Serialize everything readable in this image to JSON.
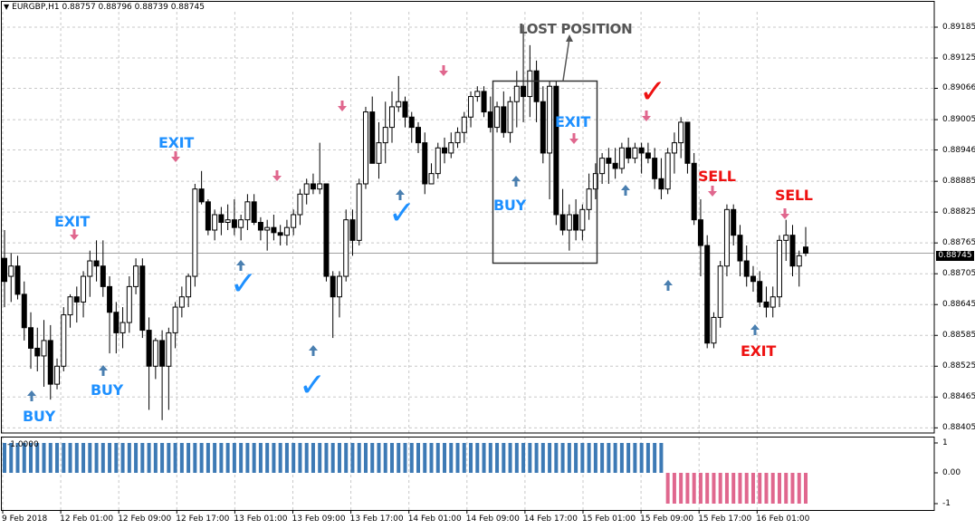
{
  "window": {
    "title": "EURGBP,H1  0.88757 0.88796 0.88739 0.88745",
    "symbol": "EURGBP",
    "timeframe": "H1"
  },
  "price_axis": {
    "labels": [
      "0.89185",
      "0.89125",
      "0.89066",
      "0.89005",
      "0.88946",
      "0.88885",
      "0.88825",
      "0.88765",
      "0.88705",
      "0.88645",
      "0.88585",
      "0.88525",
      "0.88465",
      "0.88405"
    ],
    "current_price": "0.88745",
    "range": [
      0.88395,
      0.89215
    ]
  },
  "indicator": {
    "caption": "-1.0000",
    "axis_labels": [
      "1",
      "0.00",
      "-1"
    ],
    "colors": {
      "positive": "#3d7ab5",
      "negative": "#e0678e"
    }
  },
  "time_axis": {
    "labels": [
      "9 Feb 2018",
      "12 Feb 01:00",
      "12 Feb 09:00",
      "12 Feb 17:00",
      "13 Feb 01:00",
      "13 Feb 09:00",
      "13 Feb 17:00",
      "14 Feb 01:00",
      "14 Feb 09:00",
      "14 Feb 17:00",
      "15 Feb 01:00",
      "15 Feb 09:00",
      "15 Feb 17:00",
      "16 Feb 01:00"
    ]
  },
  "annotations": {
    "buy_1": "BUY",
    "exit_1": "EXIT",
    "buy_2": "BUY",
    "exit_2": "EXIT",
    "buy_3": "BUY",
    "exit_3": "EXIT",
    "lost_position": "LOST POSITION",
    "sell_1": "SELL",
    "sell_2": "SELL",
    "exit_4": "EXIT"
  },
  "checkmark_glyph": "✓",
  "colors": {
    "bull": "#ffffff",
    "bear": "#000000",
    "grid": "#c8c8c8",
    "buy_arrow": "#4a7fb0",
    "sell_arrow": "#e0678e",
    "annotation_blue": "#1e90ff",
    "annotation_red": "#ee1111"
  },
  "chart_data": {
    "type": "candlestick",
    "symbol": "EURGBP",
    "timeframe": "H1",
    "ylim": [
      0.88395,
      0.89215
    ],
    "candles": [
      [
        0.88735,
        0.8879,
        0.8864,
        0.8869
      ],
      [
        0.887,
        0.88745,
        0.8865,
        0.8872
      ],
      [
        0.8872,
        0.8874,
        0.88655,
        0.88665
      ],
      [
        0.88665,
        0.8869,
        0.88575,
        0.886
      ],
      [
        0.886,
        0.8863,
        0.8852,
        0.8856
      ],
      [
        0.8856,
        0.886,
        0.88515,
        0.88545
      ],
      [
        0.88545,
        0.88615,
        0.88485,
        0.88575
      ],
      [
        0.88575,
        0.88605,
        0.8846,
        0.8849
      ],
      [
        0.8849,
        0.8854,
        0.8848,
        0.88525
      ],
      [
        0.88525,
        0.8864,
        0.88515,
        0.88625
      ],
      [
        0.88625,
        0.88665,
        0.886,
        0.8866
      ],
      [
        0.8866,
        0.8868,
        0.8861,
        0.8865
      ],
      [
        0.8865,
        0.8871,
        0.8862,
        0.887
      ],
      [
        0.887,
        0.8875,
        0.8866,
        0.8873
      ],
      [
        0.8873,
        0.8877,
        0.8869,
        0.8872
      ],
      [
        0.8872,
        0.8877,
        0.8866,
        0.8868
      ],
      [
        0.8868,
        0.887,
        0.8855,
        0.8863
      ],
      [
        0.8863,
        0.8865,
        0.8855,
        0.8859
      ],
      [
        0.8859,
        0.8864,
        0.8856,
        0.8861
      ],
      [
        0.8861,
        0.887,
        0.8859,
        0.8868
      ],
      [
        0.8868,
        0.88735,
        0.88665,
        0.8872
      ],
      [
        0.8872,
        0.88735,
        0.8858,
        0.88595
      ],
      [
        0.88595,
        0.8862,
        0.8844,
        0.88525
      ],
      [
        0.88525,
        0.8858,
        0.885,
        0.88575
      ],
      [
        0.88575,
        0.88595,
        0.8842,
        0.88525
      ],
      [
        0.88525,
        0.886,
        0.8844,
        0.8859
      ],
      [
        0.8859,
        0.8865,
        0.8856,
        0.8864
      ],
      [
        0.8864,
        0.8868,
        0.8862,
        0.8866
      ],
      [
        0.8866,
        0.88705,
        0.8864,
        0.887
      ],
      [
        0.887,
        0.8888,
        0.8868,
        0.8887
      ],
      [
        0.8887,
        0.88905,
        0.8884,
        0.88845
      ],
      [
        0.88845,
        0.8885,
        0.8878,
        0.8879
      ],
      [
        0.8879,
        0.8883,
        0.8877,
        0.8882
      ],
      [
        0.8882,
        0.88835,
        0.8878,
        0.88805
      ],
      [
        0.88805,
        0.8884,
        0.8879,
        0.8881
      ],
      [
        0.8881,
        0.8885,
        0.8878,
        0.88795
      ],
      [
        0.88795,
        0.8882,
        0.8877,
        0.8881
      ],
      [
        0.8881,
        0.8886,
        0.8879,
        0.88845
      ],
      [
        0.88845,
        0.8886,
        0.888,
        0.88805
      ],
      [
        0.88805,
        0.88815,
        0.8877,
        0.8879
      ],
      [
        0.8879,
        0.8881,
        0.8875,
        0.88795
      ],
      [
        0.88795,
        0.8882,
        0.8877,
        0.88785
      ],
      [
        0.88785,
        0.888,
        0.8876,
        0.8878
      ],
      [
        0.8878,
        0.8881,
        0.8876,
        0.88795
      ],
      [
        0.88795,
        0.8883,
        0.8878,
        0.8882
      ],
      [
        0.8882,
        0.8887,
        0.888,
        0.8886
      ],
      [
        0.8886,
        0.8889,
        0.8884,
        0.8888
      ],
      [
        0.8888,
        0.889,
        0.8886,
        0.8887
      ],
      [
        0.8887,
        0.8896,
        0.8886,
        0.8888
      ],
      [
        0.8888,
        0.8888,
        0.8869,
        0.887
      ],
      [
        0.887,
        0.8871,
        0.8858,
        0.8866
      ],
      [
        0.8866,
        0.8871,
        0.8862,
        0.887
      ],
      [
        0.887,
        0.8883,
        0.8869,
        0.8881
      ],
      [
        0.8881,
        0.8883,
        0.8874,
        0.8877
      ],
      [
        0.8877,
        0.8889,
        0.8876,
        0.8888
      ],
      [
        0.8888,
        0.8903,
        0.8887,
        0.8902
      ],
      [
        0.8902,
        0.8905,
        0.8892,
        0.8892
      ],
      [
        0.8892,
        0.89,
        0.8889,
        0.8896
      ],
      [
        0.8896,
        0.8904,
        0.8892,
        0.8899
      ],
      [
        0.8899,
        0.8906,
        0.8896,
        0.8903
      ],
      [
        0.8903,
        0.8909,
        0.8902,
        0.8904
      ],
      [
        0.8904,
        0.8905,
        0.8899,
        0.8901
      ],
      [
        0.8901,
        0.8902,
        0.8896,
        0.8899
      ],
      [
        0.8899,
        0.89,
        0.8894,
        0.8896
      ],
      [
        0.8896,
        0.8898,
        0.8886,
        0.8888
      ],
      [
        0.8888,
        0.8892,
        0.8888,
        0.889
      ],
      [
        0.889,
        0.8896,
        0.8889,
        0.8895
      ],
      [
        0.8895,
        0.8897,
        0.8892,
        0.8894
      ],
      [
        0.8894,
        0.8898,
        0.8893,
        0.8896
      ],
      [
        0.8896,
        0.8899,
        0.8895,
        0.8898
      ],
      [
        0.8898,
        0.8902,
        0.8896,
        0.8901
      ],
      [
        0.8901,
        0.8906,
        0.8899,
        0.8905
      ],
      [
        0.8905,
        0.8907,
        0.8904,
        0.8906
      ],
      [
        0.8906,
        0.8907,
        0.8901,
        0.8902
      ],
      [
        0.8902,
        0.8905,
        0.8898,
        0.8899
      ],
      [
        0.8899,
        0.8904,
        0.8898,
        0.8903
      ],
      [
        0.8903,
        0.8906,
        0.8897,
        0.8898
      ],
      [
        0.8898,
        0.8905,
        0.8896,
        0.8904
      ],
      [
        0.8904,
        0.891,
        0.8899,
        0.8907
      ],
      [
        0.8907,
        0.8919,
        0.89,
        0.8905
      ],
      [
        0.8905,
        0.8915,
        0.8901,
        0.891
      ],
      [
        0.891,
        0.8912,
        0.89,
        0.8904
      ],
      [
        0.8904,
        0.8907,
        0.8892,
        0.8894
      ],
      [
        0.8894,
        0.8908,
        0.8885,
        0.8907
      ],
      [
        0.8907,
        0.8908,
        0.888,
        0.8882
      ],
      [
        0.8882,
        0.8887,
        0.8878,
        0.8879
      ],
      [
        0.8879,
        0.8884,
        0.8875,
        0.8882
      ],
      [
        0.8882,
        0.8885,
        0.8877,
        0.8879
      ],
      [
        0.8879,
        0.8884,
        0.8877,
        0.8883
      ],
      [
        0.8883,
        0.889,
        0.8881,
        0.8887
      ],
      [
        0.8887,
        0.8892,
        0.8885,
        0.889
      ],
      [
        0.889,
        0.8894,
        0.8888,
        0.8893
      ],
      [
        0.8893,
        0.8895,
        0.8888,
        0.8892
      ],
      [
        0.8892,
        0.8895,
        0.8889,
        0.8891
      ],
      [
        0.8891,
        0.8896,
        0.889,
        0.8895
      ],
      [
        0.8895,
        0.8897,
        0.8892,
        0.8893
      ],
      [
        0.8893,
        0.8896,
        0.8892,
        0.8895
      ],
      [
        0.8895,
        0.8896,
        0.889,
        0.8894
      ],
      [
        0.8894,
        0.8896,
        0.8892,
        0.8893
      ],
      [
        0.8893,
        0.8895,
        0.8887,
        0.8889
      ],
      [
        0.8889,
        0.8893,
        0.8885,
        0.8887
      ],
      [
        0.8887,
        0.8895,
        0.8886,
        0.8894
      ],
      [
        0.8894,
        0.8898,
        0.889,
        0.8896
      ],
      [
        0.8896,
        0.8901,
        0.8893,
        0.89
      ],
      [
        0.89,
        0.89,
        0.889,
        0.8892
      ],
      [
        0.8892,
        0.8894,
        0.888,
        0.8881
      ],
      [
        0.8881,
        0.8885,
        0.887,
        0.8876
      ],
      [
        0.8876,
        0.8878,
        0.8856,
        0.8857
      ],
      [
        0.8857,
        0.8863,
        0.8856,
        0.8862
      ],
      [
        0.8862,
        0.8873,
        0.886,
        0.8872
      ],
      [
        0.8872,
        0.8884,
        0.887,
        0.8883
      ],
      [
        0.8883,
        0.8884,
        0.8876,
        0.8878
      ],
      [
        0.8878,
        0.888,
        0.887,
        0.8873
      ],
      [
        0.8873,
        0.8876,
        0.8868,
        0.887
      ],
      [
        0.887,
        0.8872,
        0.8867,
        0.8869
      ],
      [
        0.8869,
        0.8871,
        0.8864,
        0.8865
      ],
      [
        0.8865,
        0.8868,
        0.8862,
        0.8864
      ],
      [
        0.8864,
        0.8868,
        0.8862,
        0.8866
      ],
      [
        0.8866,
        0.8878,
        0.8864,
        0.8877
      ],
      [
        0.8877,
        0.8881,
        0.8873,
        0.8878
      ],
      [
        0.8878,
        0.888,
        0.887,
        0.8872
      ],
      [
        0.8872,
        0.8875,
        0.8868,
        0.8874
      ],
      [
        0.88757,
        0.88796,
        0.88739,
        0.88745
      ]
    ]
  }
}
